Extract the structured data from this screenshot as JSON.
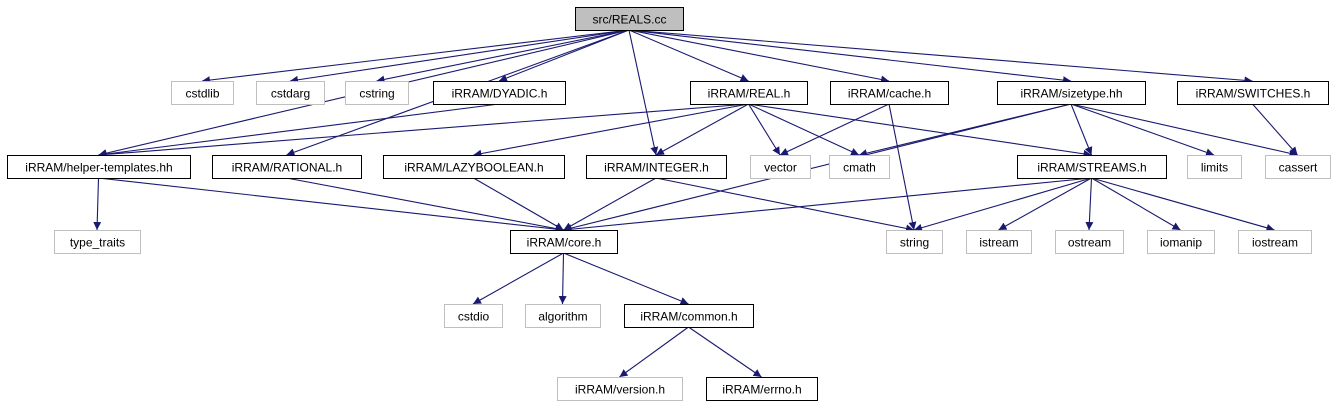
{
  "colors": {
    "edge": "#191970",
    "root_fill": "#bfbfbf",
    "root_border": "#000000",
    "project_border": "#000000",
    "system_border": "#bfbfbf",
    "system_text": "#000000"
  },
  "nodes": [
    {
      "id": "reals_cc",
      "label": "src/REALS.cc",
      "kind": "root"
    },
    {
      "id": "cstdlib",
      "label": "cstdlib",
      "kind": "system"
    },
    {
      "id": "cstdarg",
      "label": "cstdarg",
      "kind": "system"
    },
    {
      "id": "cstring",
      "label": "cstring",
      "kind": "system"
    },
    {
      "id": "dyadic_h",
      "label": "iRRAM/DYADIC.h",
      "kind": "project"
    },
    {
      "id": "real_h",
      "label": "iRRAM/REAL.h",
      "kind": "project"
    },
    {
      "id": "cache_h",
      "label": "iRRAM/cache.h",
      "kind": "project"
    },
    {
      "id": "sizetype_hh",
      "label": "iRRAM/sizetype.hh",
      "kind": "project"
    },
    {
      "id": "switches_h",
      "label": "iRRAM/SWITCHES.h",
      "kind": "project"
    },
    {
      "id": "helper_templates_hh",
      "label": "iRRAM/helper-templates.hh",
      "kind": "project"
    },
    {
      "id": "rational_h",
      "label": "iRRAM/RATIONAL.h",
      "kind": "project"
    },
    {
      "id": "lazyboolean_h",
      "label": "iRRAM/LAZYBOOLEAN.h",
      "kind": "project"
    },
    {
      "id": "integer_h",
      "label": "iRRAM/INTEGER.h",
      "kind": "project"
    },
    {
      "id": "vector",
      "label": "vector",
      "kind": "system"
    },
    {
      "id": "cmath",
      "label": "cmath",
      "kind": "system"
    },
    {
      "id": "streams_h",
      "label": "iRRAM/STREAMS.h",
      "kind": "project"
    },
    {
      "id": "limits",
      "label": "limits",
      "kind": "system"
    },
    {
      "id": "cassert",
      "label": "cassert",
      "kind": "system"
    },
    {
      "id": "type_traits",
      "label": "type_traits",
      "kind": "system"
    },
    {
      "id": "core_h",
      "label": "iRRAM/core.h",
      "kind": "project"
    },
    {
      "id": "string",
      "label": "string",
      "kind": "system"
    },
    {
      "id": "istream",
      "label": "istream",
      "kind": "system"
    },
    {
      "id": "ostream",
      "label": "ostream",
      "kind": "system"
    },
    {
      "id": "iomanip",
      "label": "iomanip",
      "kind": "system"
    },
    {
      "id": "iostream",
      "label": "iostream",
      "kind": "system"
    },
    {
      "id": "cstdio",
      "label": "cstdio",
      "kind": "system"
    },
    {
      "id": "algorithm",
      "label": "algorithm",
      "kind": "system"
    },
    {
      "id": "common_h",
      "label": "iRRAM/common.h",
      "kind": "project"
    },
    {
      "id": "version_h",
      "label": "iRRAM/version.h",
      "kind": "system"
    },
    {
      "id": "errno_h",
      "label": "iRRAM/errno.h",
      "kind": "project"
    }
  ],
  "edges": [
    [
      "reals_cc",
      "cstdlib"
    ],
    [
      "reals_cc",
      "cstdarg"
    ],
    [
      "reals_cc",
      "cstring"
    ],
    [
      "reals_cc",
      "dyadic_h"
    ],
    [
      "reals_cc",
      "helper_templates_hh"
    ],
    [
      "reals_cc",
      "rational_h"
    ],
    [
      "reals_cc",
      "integer_h"
    ],
    [
      "reals_cc",
      "real_h"
    ],
    [
      "reals_cc",
      "cache_h"
    ],
    [
      "reals_cc",
      "sizetype_hh"
    ],
    [
      "reals_cc",
      "switches_h"
    ],
    [
      "dyadic_h",
      "helper_templates_hh"
    ],
    [
      "real_h",
      "helper_templates_hh"
    ],
    [
      "real_h",
      "lazyboolean_h"
    ],
    [
      "real_h",
      "integer_h"
    ],
    [
      "real_h",
      "vector"
    ],
    [
      "real_h",
      "cmath"
    ],
    [
      "real_h",
      "streams_h"
    ],
    [
      "cache_h",
      "vector"
    ],
    [
      "cache_h",
      "string"
    ],
    [
      "sizetype_hh",
      "cmath"
    ],
    [
      "sizetype_hh",
      "core_h"
    ],
    [
      "sizetype_hh",
      "streams_h"
    ],
    [
      "sizetype_hh",
      "limits"
    ],
    [
      "sizetype_hh",
      "cassert"
    ],
    [
      "switches_h",
      "cassert"
    ],
    [
      "helper_templates_hh",
      "type_traits"
    ],
    [
      "helper_templates_hh",
      "core_h"
    ],
    [
      "rational_h",
      "core_h"
    ],
    [
      "lazyboolean_h",
      "core_h"
    ],
    [
      "integer_h",
      "core_h"
    ],
    [
      "integer_h",
      "string"
    ],
    [
      "streams_h",
      "core_h"
    ],
    [
      "streams_h",
      "string"
    ],
    [
      "streams_h",
      "istream"
    ],
    [
      "streams_h",
      "ostream"
    ],
    [
      "streams_h",
      "iomanip"
    ],
    [
      "streams_h",
      "iostream"
    ],
    [
      "core_h",
      "cstdio"
    ],
    [
      "core_h",
      "algorithm"
    ],
    [
      "core_h",
      "common_h"
    ],
    [
      "common_h",
      "version_h"
    ],
    [
      "common_h",
      "errno_h"
    ]
  ]
}
